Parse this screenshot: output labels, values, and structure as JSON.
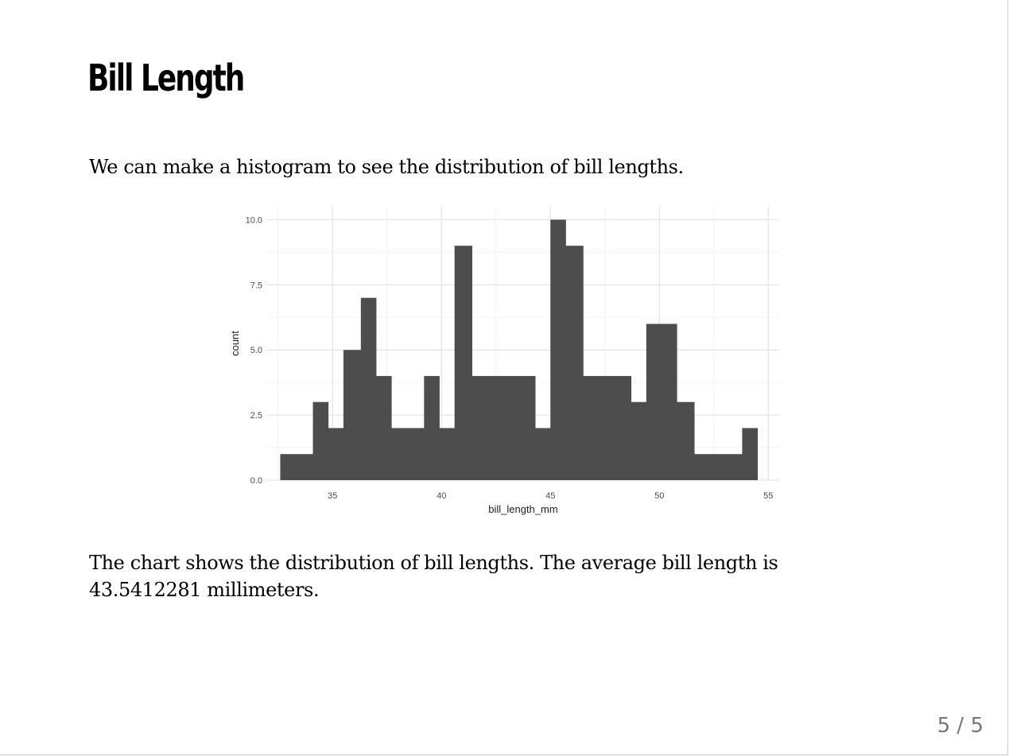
{
  "slide": {
    "title": "Bill Length",
    "intro": "We can make a histogram to see the distribution of bill lengths.",
    "summary": "The chart shows the distribution of bill lengths. The average bill length is 43.5412281 millimeters.",
    "page_number": "5 / 5"
  },
  "chart_data": {
    "type": "bar",
    "xlabel": "bill_length_mm",
    "ylabel": "count",
    "xlim": [
      32,
      55.5
    ],
    "ylim": [
      0,
      10.5
    ],
    "x_ticks": [
      35,
      40,
      45,
      50,
      55
    ],
    "y_ticks": [
      0,
      2.5,
      5,
      7.5,
      10
    ],
    "y_tick_labels": [
      "0.0",
      "2.5",
      "5.0",
      "7.5",
      "10.0"
    ],
    "grid": true,
    "bar_color": "#4d4d4d",
    "bins": [
      {
        "x0": 32.6,
        "x1": 33.3,
        "count": 1
      },
      {
        "x0": 33.3,
        "x1": 34.1,
        "count": 1
      },
      {
        "x0": 34.1,
        "x1": 34.8,
        "count": 3
      },
      {
        "x0": 34.8,
        "x1": 35.5,
        "count": 2
      },
      {
        "x0": 35.5,
        "x1": 36.3,
        "count": 5
      },
      {
        "x0": 36.3,
        "x1": 37.0,
        "count": 7
      },
      {
        "x0": 37.0,
        "x1": 37.7,
        "count": 4
      },
      {
        "x0": 37.7,
        "x1": 38.5,
        "count": 2
      },
      {
        "x0": 38.5,
        "x1": 39.2,
        "count": 2
      },
      {
        "x0": 39.2,
        "x1": 39.9,
        "count": 4
      },
      {
        "x0": 39.9,
        "x1": 40.6,
        "count": 2
      },
      {
        "x0": 40.6,
        "x1": 41.4,
        "count": 9
      },
      {
        "x0": 41.4,
        "x1": 42.1,
        "count": 4
      },
      {
        "x0": 42.1,
        "x1": 42.8,
        "count": 4
      },
      {
        "x0": 42.8,
        "x1": 43.6,
        "count": 4
      },
      {
        "x0": 43.6,
        "x1": 44.3,
        "count": 4
      },
      {
        "x0": 44.3,
        "x1": 45.0,
        "count": 2
      },
      {
        "x0": 45.0,
        "x1": 45.7,
        "count": 10
      },
      {
        "x0": 45.7,
        "x1": 46.5,
        "count": 9
      },
      {
        "x0": 46.5,
        "x1": 47.2,
        "count": 4
      },
      {
        "x0": 47.2,
        "x1": 47.9,
        "count": 4
      },
      {
        "x0": 47.9,
        "x1": 48.7,
        "count": 4
      },
      {
        "x0": 48.7,
        "x1": 49.4,
        "count": 3
      },
      {
        "x0": 49.4,
        "x1": 50.1,
        "count": 6
      },
      {
        "x0": 50.1,
        "x1": 50.8,
        "count": 6
      },
      {
        "x0": 50.8,
        "x1": 51.6,
        "count": 3
      },
      {
        "x0": 51.6,
        "x1": 52.3,
        "count": 1
      },
      {
        "x0": 52.3,
        "x1": 53.0,
        "count": 1
      },
      {
        "x0": 53.0,
        "x1": 53.8,
        "count": 1
      },
      {
        "x0": 53.8,
        "x1": 54.5,
        "count": 2
      }
    ]
  }
}
